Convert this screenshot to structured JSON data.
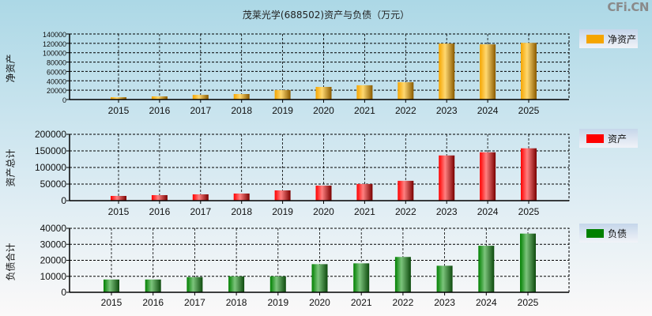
{
  "header": {
    "title": "茂莱光学(688502)资产与负债（万元）",
    "brand": "CFi.CN"
  },
  "chart_data": [
    {
      "type": "bar",
      "ylabel": "净资产",
      "legend": "净资产",
      "color": "#f5a500",
      "categories": [
        "2015",
        "2016",
        "2017",
        "2018",
        "2019",
        "2020",
        "2021",
        "2022",
        "2023",
        "2024",
        "2025"
      ],
      "values": [
        5000,
        6700,
        10000,
        11800,
        20200,
        27000,
        30500,
        37000,
        119500,
        117800,
        121000
      ],
      "ylim": [
        0,
        140000
      ],
      "yticks": [
        "0",
        "20000",
        "40000",
        "60000",
        "80000",
        "100000",
        "120000",
        "140000"
      ],
      "grid": true,
      "legend_position": "right"
    },
    {
      "type": "bar",
      "ylabel": "资产总计",
      "legend": "资产",
      "color": "#ff0000",
      "categories": [
        "2015",
        "2016",
        "2017",
        "2018",
        "2019",
        "2020",
        "2021",
        "2022",
        "2023",
        "2024",
        "2025"
      ],
      "values": [
        14300,
        16700,
        19100,
        21500,
        31000,
        45400,
        50200,
        59800,
        136300,
        145800,
        157800
      ],
      "ylim": [
        0,
        200000
      ],
      "yticks": [
        "0",
        "50000",
        "100000",
        "150000",
        "200000"
      ],
      "grid": true,
      "legend_position": "right"
    },
    {
      "type": "bar",
      "ylabel": "负债合计",
      "legend": "负债",
      "color": "#008000",
      "categories": [
        "2015",
        "2016",
        "2017",
        "2018",
        "2019",
        "2020",
        "2021",
        "2022",
        "2023",
        "2024",
        "2025"
      ],
      "values": [
        8000,
        8000,
        9500,
        10000,
        10000,
        17600,
        18100,
        22100,
        16600,
        29100,
        36700
      ],
      "ylim": [
        0,
        40000
      ],
      "yticks": [
        "0",
        "10000",
        "20000",
        "30000",
        "40000"
      ],
      "grid": true,
      "legend_position": "right"
    }
  ]
}
